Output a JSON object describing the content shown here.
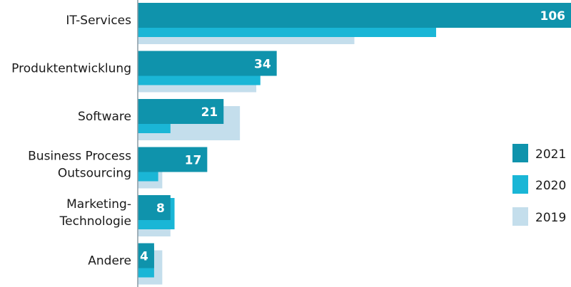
{
  "chart_data": {
    "type": "bar",
    "orientation": "horizontal",
    "categories": [
      [
        "IT-Services"
      ],
      [
        "Produktentwicklung"
      ],
      [
        "Software"
      ],
      [
        "Business Process",
        "Outsourcing"
      ],
      [
        "Marketing-",
        "Technologie"
      ],
      [
        "Andere"
      ]
    ],
    "series": [
      {
        "name": "2021",
        "color": "#0f93ac",
        "values": [
          106,
          34,
          21,
          17,
          8,
          4
        ]
      },
      {
        "name": "2020",
        "color": "#1ab6d6",
        "values": [
          73,
          30,
          8,
          5,
          9,
          4
        ]
      },
      {
        "name": "2019",
        "color": "#c4deec",
        "values": [
          53,
          29,
          25,
          6,
          8,
          6
        ]
      }
    ],
    "value_labels_series": "2021",
    "xlim": [
      0,
      106
    ],
    "grid": false,
    "legend": "right"
  }
}
